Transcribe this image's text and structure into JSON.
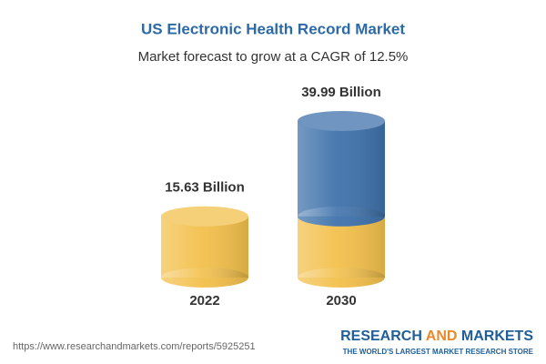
{
  "chart_data": {
    "type": "bar",
    "title": "US Electronic Health Record Market",
    "subtitle": "Market forecast to grow at a CAGR of 12.5%",
    "categories": [
      "2022",
      "2030"
    ],
    "values": [
      15.63,
      39.99
    ],
    "value_labels": [
      "15.63 Billion",
      "39.99 Billion"
    ],
    "colors": [
      "#f3c04c",
      "#3f72ab"
    ]
  },
  "footer": {
    "url": "https://www.researchandmarkets.com/reports/5925251",
    "brand": [
      "RESEARCH",
      "AND",
      "MARKETS"
    ],
    "tagline": "THE WORLD'S LARGEST MARKET RESEARCH STORE"
  }
}
